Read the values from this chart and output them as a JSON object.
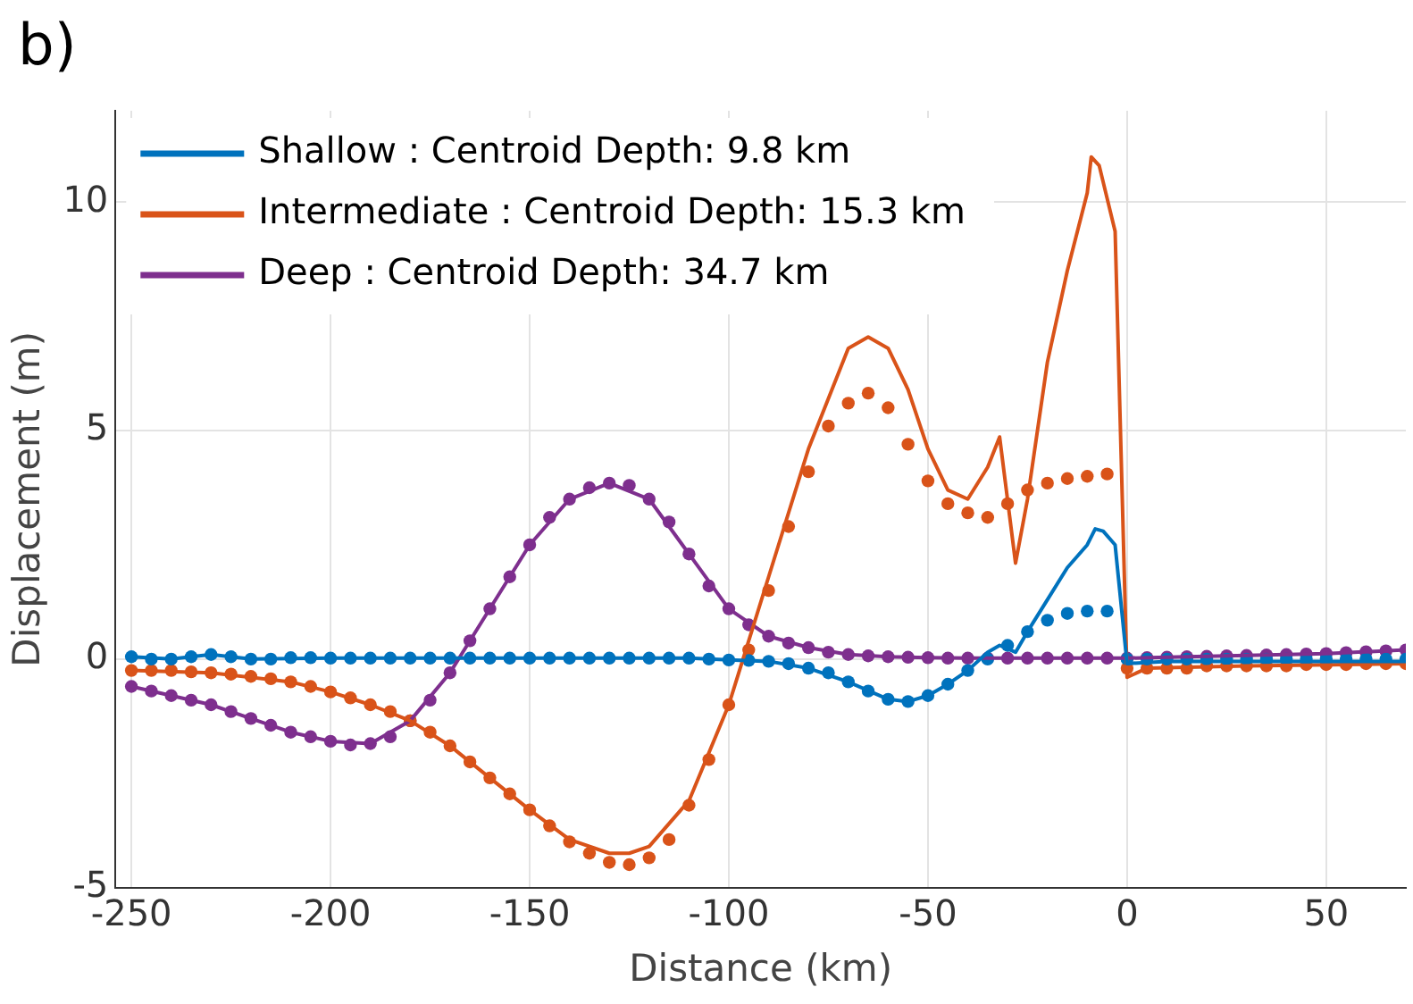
{
  "chart_data": {
    "type": "line",
    "title": "b)",
    "xlabel": "Distance (km)",
    "ylabel": "Displacement (m)",
    "xlim": [
      -254,
      70
    ],
    "xticks": [
      -250,
      -200,
      -150,
      -100,
      -50,
      0,
      50
    ],
    "ylim": [
      -5,
      12
    ],
    "yticks": [
      -5,
      0,
      5,
      10
    ],
    "grid": true,
    "legend": "top left",
    "series": [
      {
        "type": "scatter",
        "marker": "circle",
        "color": "#0072bd",
        "x": [
          -250,
          -245,
          -240,
          -235,
          -230,
          -225,
          -220,
          -215,
          -210,
          -205,
          -200,
          -195,
          -190,
          -185,
          -180,
          -175,
          -170,
          -165,
          -160,
          -155,
          -150,
          -145,
          -140,
          -135,
          -130,
          -125,
          -120,
          -115,
          -110,
          -105,
          -100,
          -95,
          -90,
          -85,
          -80,
          -75,
          -70,
          -65,
          -60,
          -55,
          -50,
          -45,
          -40,
          -35,
          -30,
          -25,
          -20,
          -15,
          -10,
          -5,
          0,
          5,
          10,
          15,
          20,
          25,
          30,
          35,
          40,
          45,
          50,
          55,
          60,
          65,
          70
        ],
        "values": [
          0.05,
          0,
          0,
          0.05,
          0.1,
          0.05,
          0,
          0,
          0.03,
          0.03,
          0.02,
          0.02,
          0.02,
          0.02,
          0.02,
          0.02,
          0.02,
          0.02,
          0.02,
          0.02,
          0.02,
          0.02,
          0.02,
          0.02,
          0.02,
          0.02,
          0.02,
          0.02,
          0.02,
          0,
          -0.02,
          -0.03,
          -0.05,
          -0.1,
          -0.2,
          -0.3,
          -0.5,
          -0.7,
          -0.88,
          -0.93,
          -0.8,
          -0.55,
          -0.25,
          0,
          0.3,
          0.6,
          0.85,
          1,
          1.05,
          1.05,
          0,
          0,
          0,
          0,
          0,
          0,
          0,
          0,
          0,
          0,
          0,
          0,
          0,
          0,
          0
        ]
      },
      {
        "type": "scatter",
        "marker": "circle",
        "color": "#d95319",
        "x": [
          -250,
          -245,
          -240,
          -235,
          -230,
          -225,
          -220,
          -215,
          -210,
          -205,
          -200,
          -195,
          -190,
          -185,
          -180,
          -175,
          -170,
          -165,
          -160,
          -155,
          -150,
          -145,
          -140,
          -135,
          -130,
          -125,
          -120,
          -115,
          -110,
          -105,
          -100,
          -95,
          -90,
          -85,
          -80,
          -75,
          -70,
          -65,
          -60,
          -55,
          -50,
          -45,
          -40,
          -35,
          -30,
          -25,
          -20,
          -15,
          -10,
          -5,
          0,
          5,
          10,
          15,
          20,
          25,
          30,
          35,
          40,
          45,
          50,
          55,
          60,
          65,
          70
        ],
        "values": [
          -0.25,
          -0.25,
          -0.25,
          -0.28,
          -0.3,
          -0.33,
          -0.38,
          -0.43,
          -0.5,
          -0.6,
          -0.72,
          -0.85,
          -1.0,
          -1.15,
          -1.35,
          -1.6,
          -1.9,
          -2.25,
          -2.6,
          -2.95,
          -3.3,
          -3.65,
          -4.0,
          -4.25,
          -4.45,
          -4.5,
          -4.35,
          -3.95,
          -3.2,
          -2.2,
          -1.0,
          0.2,
          1.5,
          2.9,
          4.1,
          5.1,
          5.6,
          5.82,
          5.5,
          4.7,
          3.9,
          3.4,
          3.2,
          3.1,
          3.4,
          3.7,
          3.85,
          3.95,
          4.0,
          4.05,
          -0.2,
          -0.2,
          -0.2,
          -0.2,
          -0.15,
          -0.15,
          -0.15,
          -0.15,
          -0.15,
          -0.12,
          -0.12,
          -0.12,
          -0.1,
          -0.1,
          -0.1
        ]
      },
      {
        "type": "scatter",
        "marker": "circle",
        "color": "#7e2f8e",
        "x": [
          -250,
          -245,
          -240,
          -235,
          -230,
          -225,
          -220,
          -215,
          -210,
          -205,
          -200,
          -195,
          -190,
          -185,
          -180,
          -175,
          -170,
          -165,
          -160,
          -155,
          -150,
          -145,
          -140,
          -135,
          -130,
          -125,
          -120,
          -115,
          -110,
          -105,
          -100,
          -95,
          -90,
          -85,
          -80,
          -75,
          -70,
          -65,
          -60,
          -55,
          -50,
          -45,
          -40,
          -35,
          -30,
          -25,
          -20,
          -15,
          -10,
          -5,
          0,
          5,
          10,
          15,
          20,
          25,
          30,
          35,
          40,
          45,
          50,
          55,
          60,
          65,
          70
        ],
        "values": [
          -0.6,
          -0.7,
          -0.8,
          -0.9,
          -1.0,
          -1.15,
          -1.3,
          -1.45,
          -1.6,
          -1.7,
          -1.8,
          -1.88,
          -1.85,
          -1.7,
          -1.35,
          -0.9,
          -0.3,
          0.4,
          1.1,
          1.8,
          2.5,
          3.1,
          3.5,
          3.75,
          3.85,
          3.8,
          3.5,
          3.0,
          2.3,
          1.6,
          1.1,
          0.75,
          0.5,
          0.35,
          0.25,
          0.15,
          0.1,
          0.07,
          0.05,
          0.04,
          0.03,
          0.02,
          0.02,
          0.02,
          0.02,
          0.02,
          0.02,
          0.02,
          0.02,
          0.02,
          0.02,
          0.03,
          0.04,
          0.05,
          0.06,
          0.07,
          0.08,
          0.09,
          0.1,
          0.11,
          0.12,
          0.14,
          0.16,
          0.18,
          0.2
        ]
      },
      {
        "marker": "none",
        "name": "Shallow : Centroid Depth: 9.8 km",
        "color": "#0072bd",
        "x": [
          -250,
          -240,
          -230,
          -220,
          -200,
          -150,
          -110,
          -100,
          -90,
          -80,
          -70,
          -60,
          -55,
          -50,
          -45,
          -40,
          -35,
          -32,
          -28,
          -25,
          -20,
          -15,
          -10,
          -8,
          -6,
          -3,
          0,
          10,
          30,
          50,
          70
        ],
        "values": [
          0.05,
          0,
          0.1,
          0,
          0.02,
          0.02,
          0.02,
          -0.02,
          -0.05,
          -0.2,
          -0.5,
          -0.88,
          -0.93,
          -0.8,
          -0.55,
          -0.25,
          0.15,
          0.3,
          0.15,
          0.6,
          1.3,
          2.0,
          2.5,
          2.85,
          2.8,
          2.5,
          -0.1,
          -0.05,
          -0.05,
          -0.05,
          -0.05
        ]
      },
      {
        "marker": "none",
        "name": "Intermediate : Centroid Depth: 15.3 km",
        "color": "#d95319",
        "x": [
          -250,
          -230,
          -210,
          -200,
          -190,
          -180,
          -170,
          -160,
          -150,
          -140,
          -130,
          -125,
          -120,
          -110,
          -100,
          -90,
          -80,
          -70,
          -65,
          -60,
          -55,
          -50,
          -45,
          -40,
          -35,
          -32,
          -28,
          -25,
          -20,
          -15,
          -10,
          -9,
          -7,
          -3,
          0,
          5,
          30,
          70
        ],
        "values": [
          -0.25,
          -0.3,
          -0.5,
          -0.72,
          -1.0,
          -1.35,
          -1.9,
          -2.6,
          -3.3,
          -3.95,
          -4.25,
          -4.25,
          -4.1,
          -3.1,
          -1.0,
          1.8,
          4.6,
          6.8,
          7.05,
          6.8,
          5.9,
          4.6,
          3.7,
          3.5,
          4.2,
          4.86,
          2.1,
          3.5,
          6.5,
          8.5,
          10.2,
          10.99,
          10.8,
          9.36,
          -0.4,
          -0.2,
          -0.15,
          -0.1
        ]
      },
      {
        "marker": "none",
        "name": "Deep : Centroid Depth: 34.7 km",
        "color": "#7e2f8e",
        "x": [
          -250,
          -240,
          -230,
          -220,
          -210,
          -200,
          -190,
          -180,
          -170,
          -160,
          -150,
          -140,
          -130,
          -120,
          -110,
          -100,
          -90,
          -80,
          -70,
          -60,
          -50,
          -40,
          -30,
          -20,
          -10,
          0,
          10,
          20,
          30,
          40,
          50,
          60,
          70
        ],
        "values": [
          -0.6,
          -0.8,
          -1.0,
          -1.3,
          -1.6,
          -1.8,
          -1.85,
          -1.35,
          -0.3,
          1.1,
          2.5,
          3.5,
          3.85,
          3.5,
          2.3,
          1.1,
          0.5,
          0.25,
          0.1,
          0.05,
          0.03,
          0.02,
          0.02,
          0.02,
          0.02,
          0.02,
          0.04,
          0.06,
          0.08,
          0.1,
          0.12,
          0.16,
          0.2
        ]
      }
    ]
  }
}
